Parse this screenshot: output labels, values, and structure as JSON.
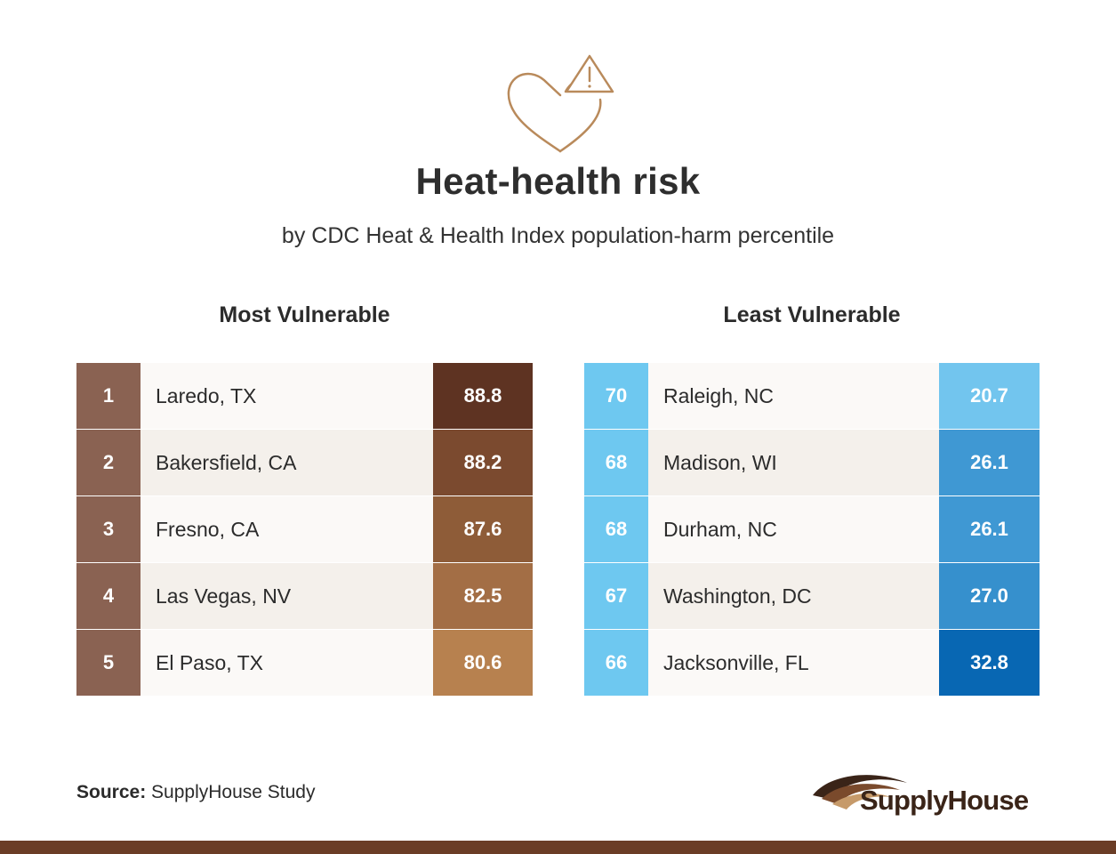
{
  "header": {
    "icon": "heart-warning-icon",
    "title": "Heat-health risk",
    "subtitle": "by CDC Heat & Health Index population-harm percentile"
  },
  "most_vulnerable": {
    "heading": "Most Vulnerable",
    "rows": [
      {
        "rank": "1",
        "city": "Laredo, TX",
        "value": "88.8",
        "color": "#5e3322"
      },
      {
        "rank": "2",
        "city": "Bakersfield, CA",
        "value": "88.2",
        "color": "#7b4a2f"
      },
      {
        "rank": "3",
        "city": "Fresno, CA",
        "value": "87.6",
        "color": "#8e5c38"
      },
      {
        "rank": "4",
        "city": "Las Vegas, NV",
        "value": "82.5",
        "color": "#a36e45"
      },
      {
        "rank": "5",
        "city": "El Paso, TX",
        "value": "80.6",
        "color": "#b7814f"
      }
    ]
  },
  "least_vulnerable": {
    "heading": "Least Vulnerable",
    "rows": [
      {
        "rank": "70",
        "city": "Raleigh, NC",
        "value": "20.7",
        "color": "#72c5ee"
      },
      {
        "rank": "68",
        "city": "Madison, WI",
        "value": "26.1",
        "color": "#3f98d3"
      },
      {
        "rank": "68",
        "city": "Durham, NC",
        "value": "26.1",
        "color": "#3f98d3"
      },
      {
        "rank": "67",
        "city": "Washington, DC",
        "value": "27.0",
        "color": "#3690cd"
      },
      {
        "rank": "66",
        "city": "Jacksonville, FL",
        "value": "32.8",
        "color": "#0867b3"
      }
    ]
  },
  "footer": {
    "source_label": "Source:",
    "source_text": "SupplyHouse Study",
    "logo_text": "SupplyHouse",
    "bar_color": "#6b3d26"
  }
}
